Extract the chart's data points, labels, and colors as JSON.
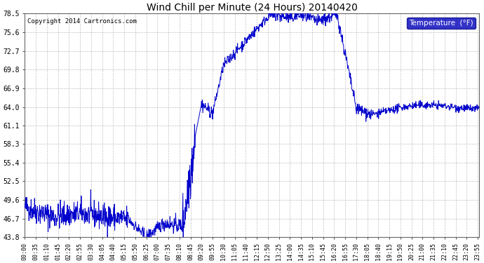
{
  "title": "Wind Chill per Minute (24 Hours) 20140420",
  "copyright_text": "Copyright 2014 Cartronics.com",
  "legend_label": "Temperature  (°F)",
  "line_color": "#0000CC",
  "background_color": "#ffffff",
  "grid_color": "#b0b0b0",
  "ylim": [
    43.8,
    78.5
  ],
  "yticks": [
    43.8,
    46.7,
    49.6,
    52.5,
    55.4,
    58.3,
    61.1,
    64.0,
    66.9,
    69.8,
    72.7,
    75.6,
    78.5
  ],
  "legend_bg": "#0000BB",
  "legend_fg": "#ffffff",
  "tick_interval_min": 35
}
